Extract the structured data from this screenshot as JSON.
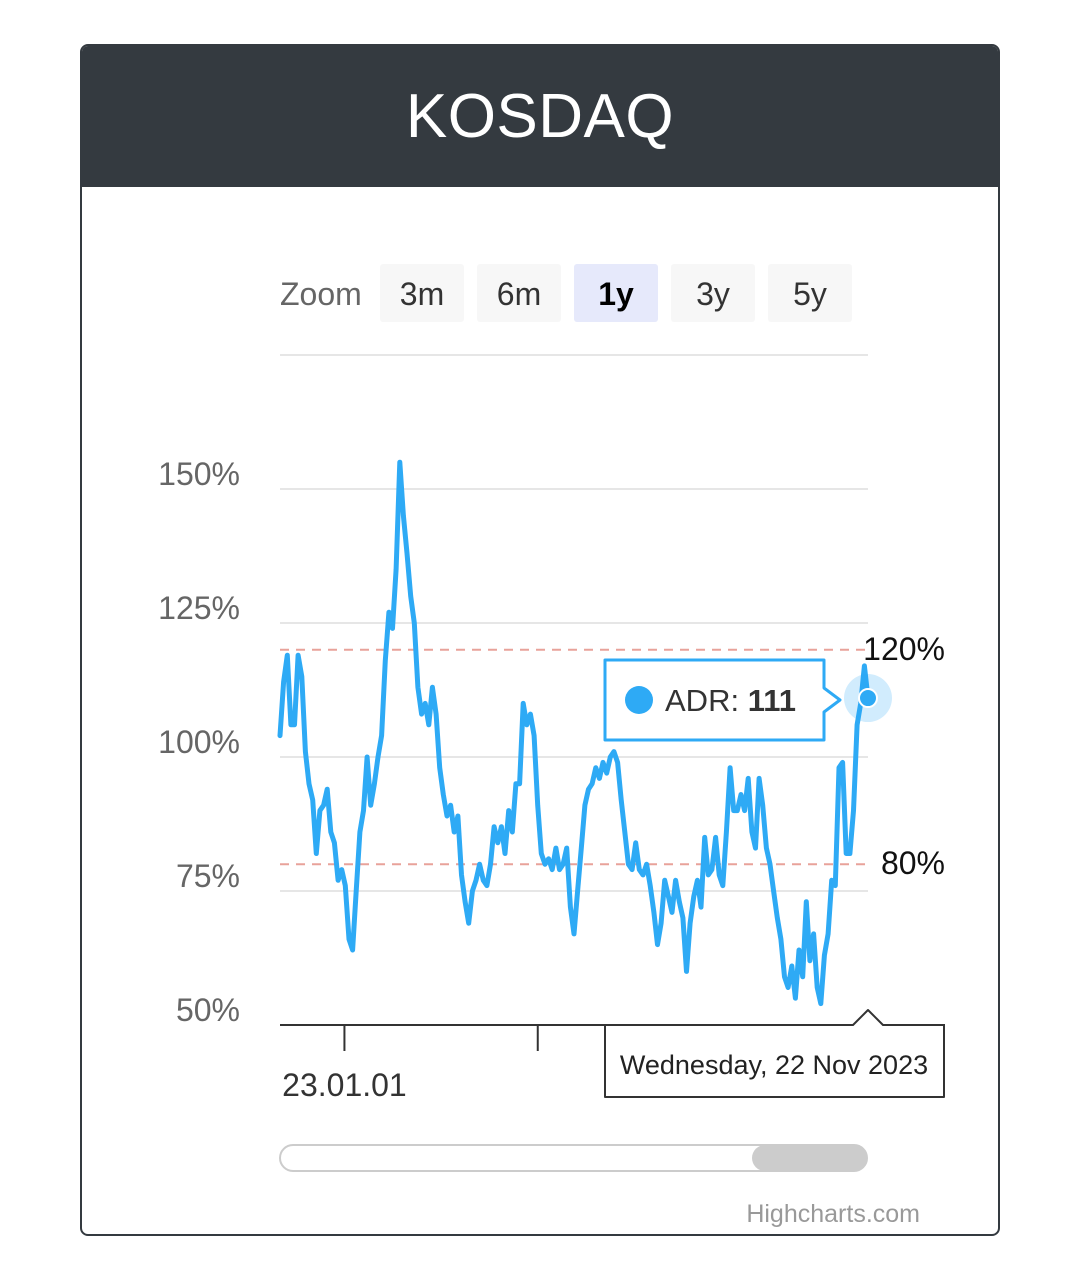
{
  "card": {
    "title": "KOSDAQ"
  },
  "zoom": {
    "label": "Zoom",
    "buttons": [
      "3m",
      "6m",
      "1y",
      "3y",
      "5y"
    ],
    "selected": "1y"
  },
  "tooltip": {
    "series": "ADR",
    "value": "111",
    "date": "Wednesday, 22 Nov 2023"
  },
  "credits": "Highcharts.com",
  "colors": {
    "header_bg": "#343a40",
    "series": "#2eaaf5",
    "band_line": "#e8a29a",
    "selected_button": "#e6e9fb"
  },
  "chart_data": {
    "type": "line",
    "series": [
      {
        "name": "ADR",
        "values": [
          104,
          114,
          119,
          106,
          106,
          119,
          115,
          101,
          95,
          92,
          82,
          90,
          91,
          94,
          86,
          84,
          77,
          79,
          76,
          66,
          64,
          75,
          86,
          90,
          100,
          91,
          95,
          100,
          104,
          118,
          127,
          124,
          135,
          155,
          145,
          138,
          130,
          125,
          113,
          108,
          110,
          106,
          113,
          108,
          98,
          93,
          89,
          91,
          86,
          89,
          78,
          73,
          69,
          75,
          77,
          80,
          77,
          76,
          80,
          87,
          84,
          87,
          82,
          90,
          86,
          95,
          95,
          110,
          106,
          108,
          104,
          91,
          82,
          80,
          81,
          79,
          83,
          79,
          80,
          83,
          72,
          67,
          75,
          83,
          91,
          94,
          95,
          98,
          96,
          99,
          97,
          100,
          101,
          99,
          92,
          86,
          80,
          79,
          84,
          79,
          78,
          80,
          76,
          71,
          65,
          69,
          77,
          74,
          71,
          77,
          73,
          70,
          60,
          69,
          74,
          77,
          72,
          85,
          78,
          79,
          85,
          78,
          76,
          86,
          98,
          90,
          90,
          93,
          90,
          96,
          86,
          83,
          96,
          91,
          83,
          80,
          75,
          70,
          66,
          59,
          57,
          61,
          55,
          64,
          59,
          73,
          62,
          67,
          57,
          54,
          63,
          67,
          77,
          76,
          98,
          99,
          82,
          82,
          90,
          106,
          110,
          117,
          111
        ]
      }
    ],
    "x_start": "2022-11-22",
    "x_end": "2023-11-22",
    "x_tick_labels": [
      "23.01.01"
    ],
    "yticks": [
      50,
      75,
      100,
      125,
      150
    ],
    "ytick_labels": [
      "50%",
      "75%",
      "100%",
      "125%",
      "150%"
    ],
    "ylim": [
      50,
      175
    ],
    "plot_lines": [
      {
        "value": 120,
        "label": "120%"
      },
      {
        "value": 80,
        "label": "80%"
      }
    ],
    "legend": "none",
    "grid": true,
    "navigator": {
      "type": "scrollbar"
    }
  }
}
